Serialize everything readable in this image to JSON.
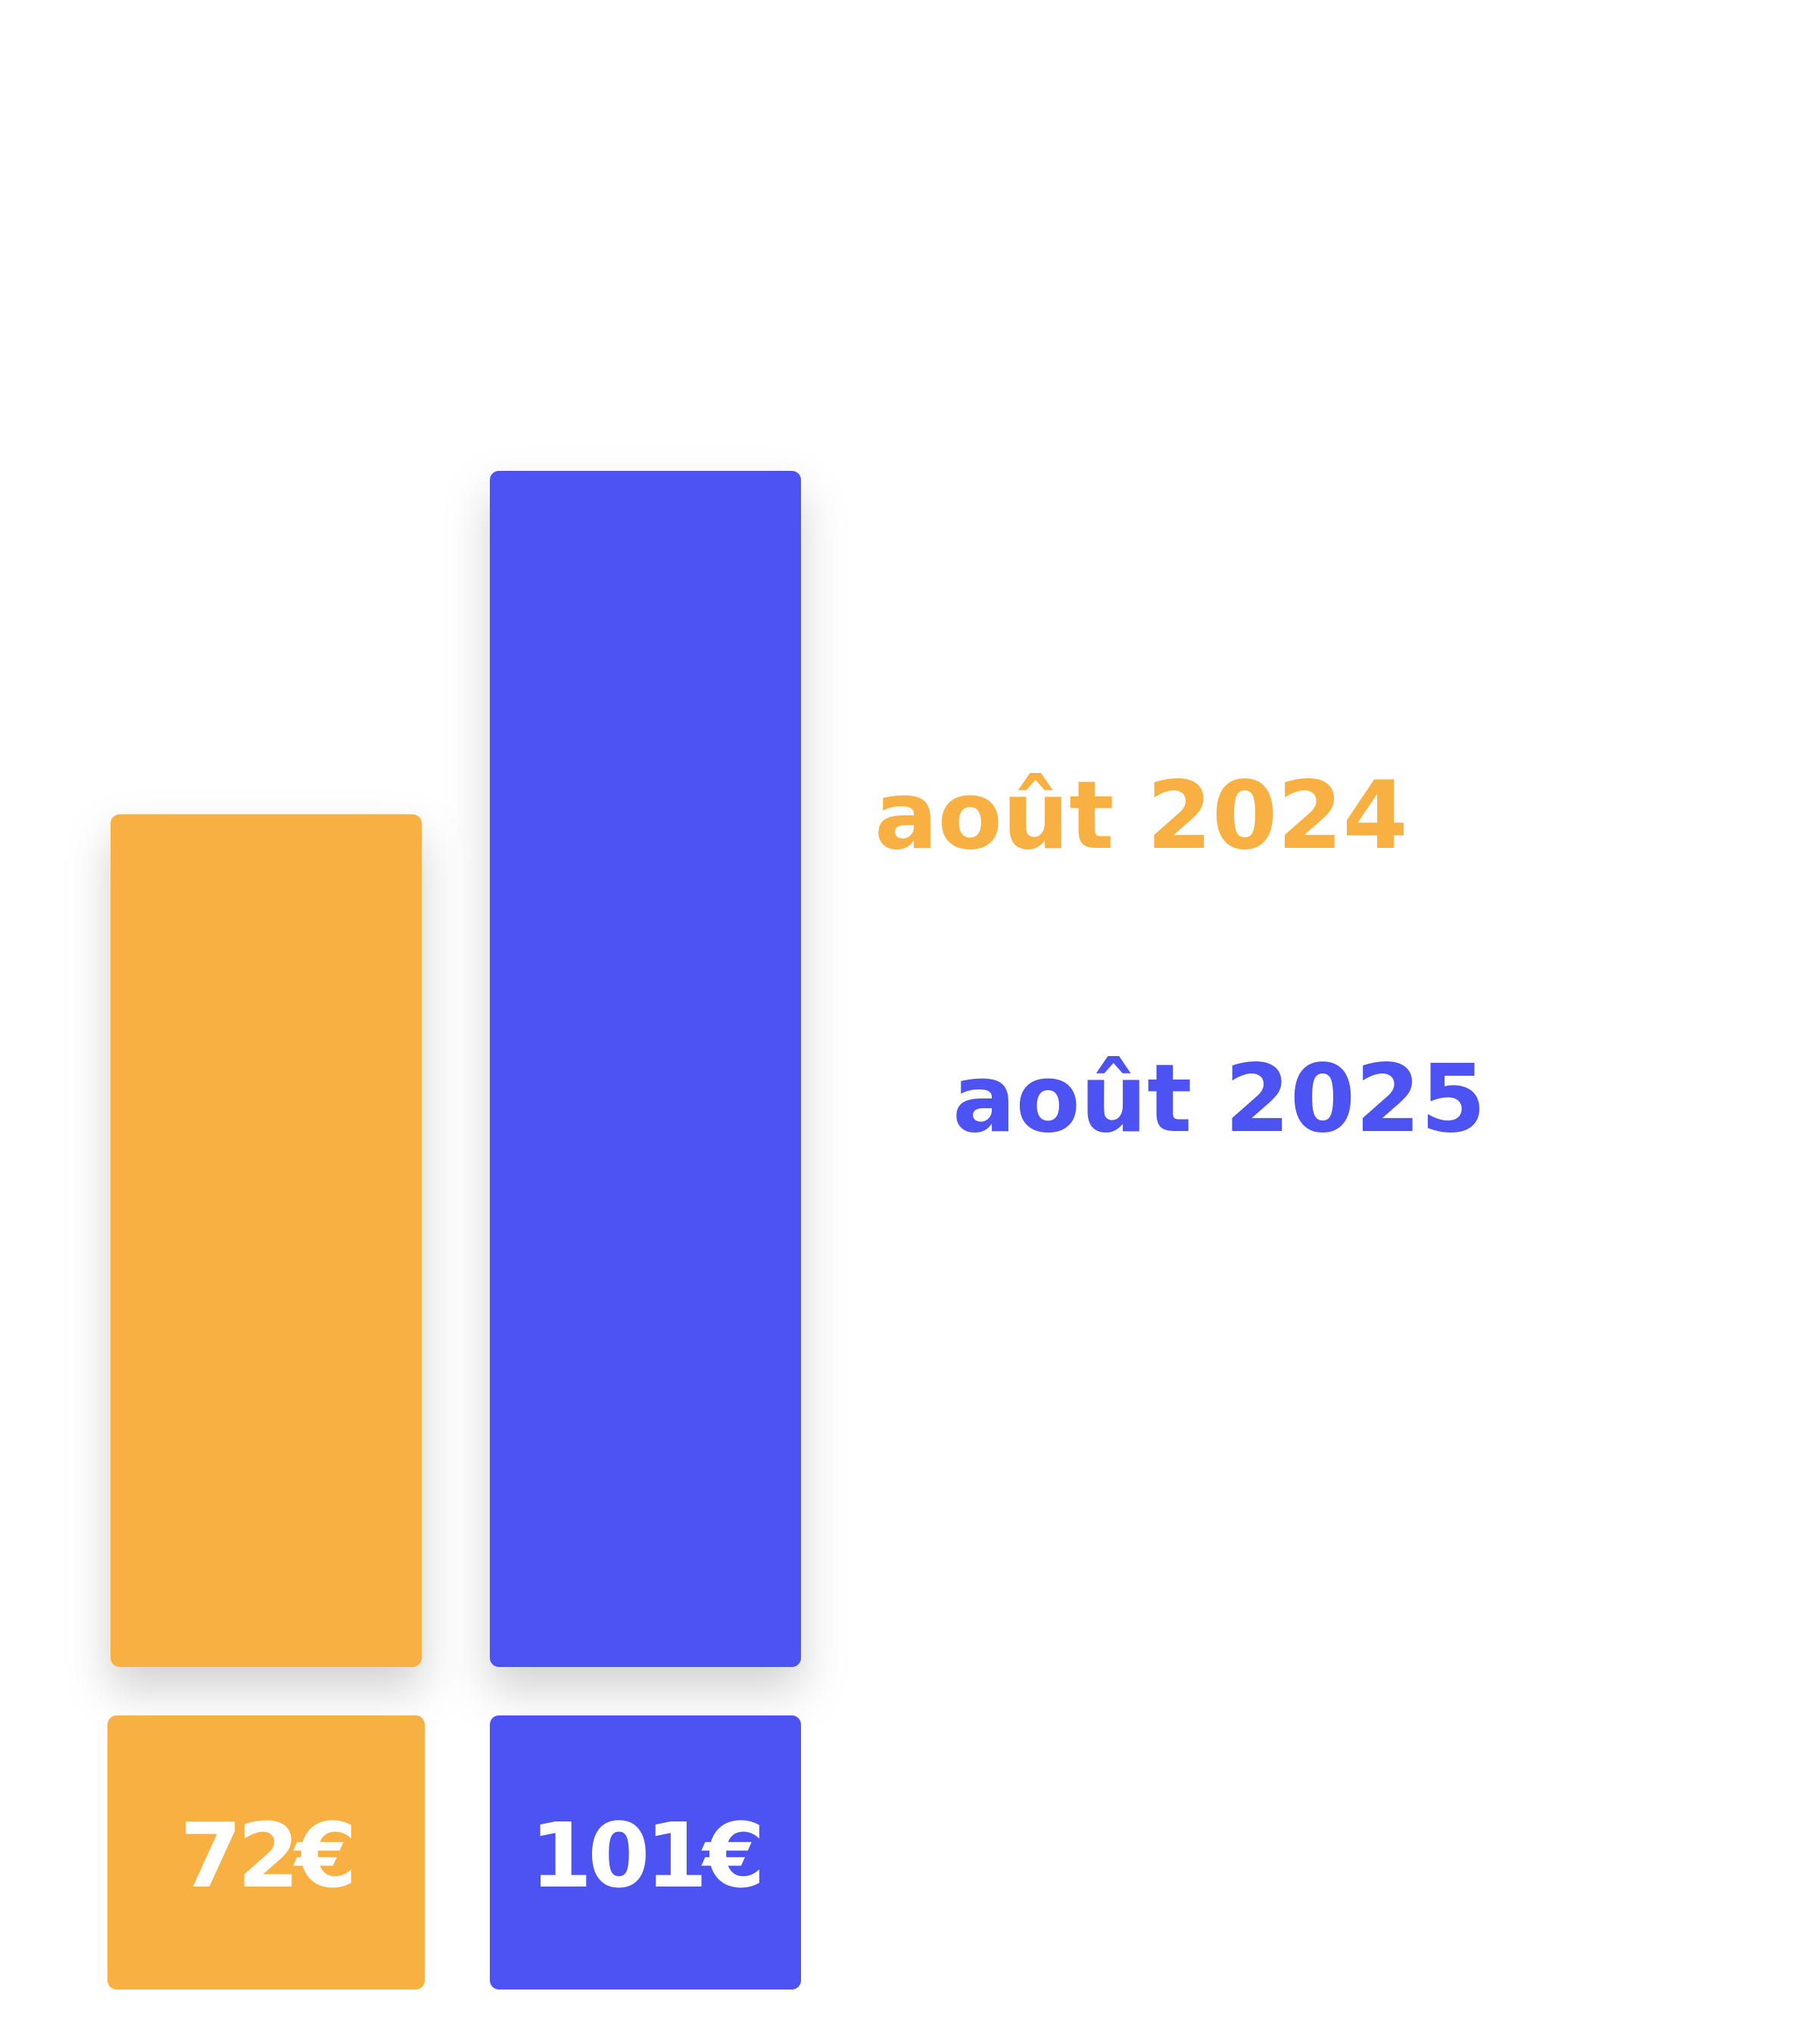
{
  "chart_data": {
    "type": "bar",
    "categories": [
      "août 2024",
      "août 2025"
    ],
    "values": [
      72,
      101
    ],
    "value_labels": [
      "72€",
      "101€"
    ],
    "colors": [
      "#f8b042",
      "#4d52f3"
    ]
  }
}
